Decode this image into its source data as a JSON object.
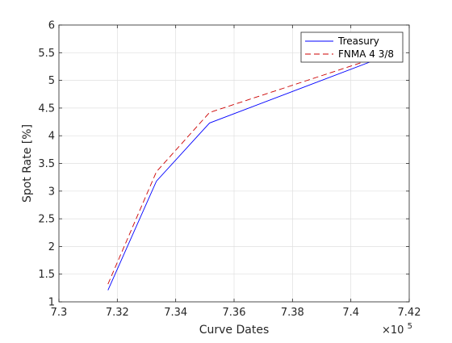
{
  "chart_data": {
    "type": "line",
    "xlabel": "Curve Dates",
    "ylabel": "Spot Rate [%]",
    "x_exponent_label": "×10",
    "x_exponent_power": "5",
    "x_multiplier": 100000,
    "xlim": [
      7.3,
      7.42
    ],
    "ylim": [
      1,
      6
    ],
    "xticks": [
      7.3,
      7.32,
      7.34,
      7.36,
      7.38,
      7.4,
      7.42
    ],
    "xtick_labels": [
      "7.3",
      "7.32",
      "7.34",
      "7.36",
      "7.38",
      "7.4",
      "7.42"
    ],
    "yticks": [
      1,
      1.5,
      2,
      2.5,
      3,
      3.5,
      4,
      4.5,
      5,
      5.5,
      6
    ],
    "ytick_labels": [
      "1",
      "1.5",
      "2",
      "2.5",
      "3",
      "3.5",
      "4",
      "4.5",
      "5",
      "5.5",
      "6"
    ],
    "grid": true,
    "legend_position": "top-right",
    "series": [
      {
        "name": "Treasury",
        "color": "#0000ff",
        "dash": "solid",
        "x": [
          7.3168,
          7.3334,
          7.3516,
          7.4174
        ],
        "y": [
          1.21,
          3.18,
          4.23,
          5.55
        ]
      },
      {
        "name": "FNMA 4 3/8",
        "color": "#cc0000",
        "dash": "dashed",
        "x": [
          7.3168,
          7.3334,
          7.3516,
          7.4174
        ],
        "y": [
          1.32,
          3.35,
          4.42,
          5.56
        ]
      }
    ]
  }
}
